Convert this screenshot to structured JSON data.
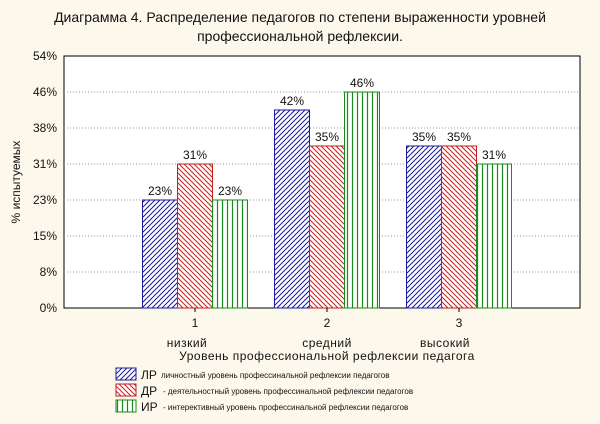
{
  "chart_data": {
    "type": "bar",
    "title_line1": "Диаграмма 4. Распределение педагогов по степени выраженности уровней",
    "title_line2": "профессиональной рефлексии.",
    "ylabel": "% испытуемых",
    "xlabel": "Уровень профессиональной рефлексии педагога",
    "ylim": [
      0,
      53.85
    ],
    "yticks": [
      0,
      7.69,
      15.38,
      23.08,
      30.77,
      38.46,
      46.15,
      53.85
    ],
    "ytick_labels": [
      "0%",
      "8%",
      "15%",
      "23%",
      "31%",
      "38%",
      "46%",
      "54%"
    ],
    "grid": true,
    "categories": [
      "1",
      "2",
      "3"
    ],
    "category_names": [
      "низкий",
      "средний",
      "высокий"
    ],
    "series": [
      {
        "name": "ЛР",
        "desc": "личностный уровень профессинальной рефлексии педагогов",
        "color": "#1a1a9a",
        "pattern": "diag-right",
        "values": [
          23.08,
          42.31,
          34.62
        ],
        "labels": [
          "23%",
          "42%",
          "35%"
        ]
      },
      {
        "name": "ДР",
        "desc": "- деятельностный уровень профессинальной рефлексии педагогов",
        "color": "#c41e1e",
        "pattern": "diag-left",
        "values": [
          30.77,
          34.62,
          34.62
        ],
        "labels": [
          "31%",
          "35%",
          "35%"
        ]
      },
      {
        "name": "ИР",
        "desc": "- интерективный уровень профессинальной рефлексии педагогов",
        "color": "#1a8a1a",
        "pattern": "vertical",
        "values": [
          23.08,
          46.15,
          30.77
        ],
        "labels": [
          "23%",
          "46%",
          "31%"
        ]
      }
    ],
    "legend_position": "bottom-left"
  }
}
